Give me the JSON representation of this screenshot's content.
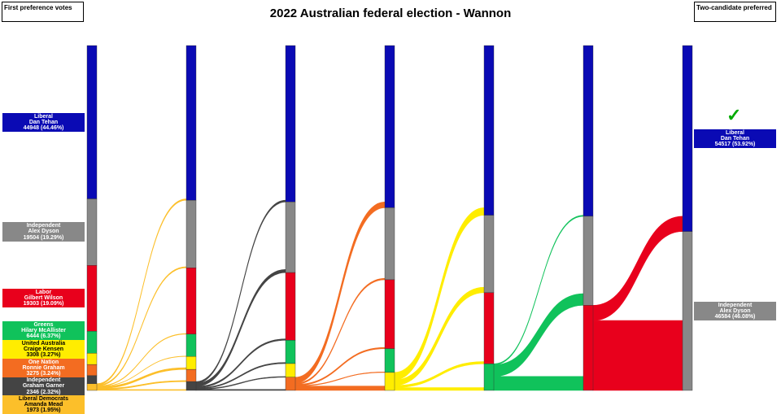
{
  "chart_data": {
    "type": "sankey",
    "title": "2022 Australian federal election - Wannon",
    "left_header": "First preference votes",
    "right_header": "Two-candidate preferred",
    "candidates": [
      {
        "id": "lib",
        "party": "Liberal",
        "name": "Dan Tehan",
        "votes": 44948,
        "pct": "44.46%",
        "color": "#0a0ab4",
        "text": "#ffffff"
      },
      {
        "id": "dys",
        "party": "Independent",
        "name": "Alex Dyson",
        "votes": 19504,
        "pct": "19.29%",
        "color": "#888888",
        "text": "#ffffff"
      },
      {
        "id": "alp",
        "party": "Labor",
        "name": "Gilbert Wilson",
        "votes": 19303,
        "pct": "19.09%",
        "color": "#e8001c",
        "text": "#ffffff"
      },
      {
        "id": "grn",
        "party": "Greens",
        "name": "Hilary McAllister",
        "votes": 6444,
        "pct": "6.37%",
        "color": "#10c25b",
        "text": "#ffffff"
      },
      {
        "id": "uap",
        "party": "United Australia",
        "name": "Craige Kensen",
        "votes": 3308,
        "pct": "3.27%",
        "color": "#ffed00",
        "text": "#000000"
      },
      {
        "id": "onp",
        "party": "One Nation",
        "name": "Ronnie Graham",
        "votes": 3275,
        "pct": "3.24%",
        "color": "#f36c21",
        "text": "#ffffff"
      },
      {
        "id": "gar",
        "party": "Independent",
        "name": "Graham Garner",
        "votes": 2346,
        "pct": "2.32%",
        "color": "#444444",
        "text": "#ffffff"
      },
      {
        "id": "ldp",
        "party": "Liberal Democrats",
        "name": "Amanda Mead",
        "votes": 1973,
        "pct": "1.95%",
        "color": "#fcbf2a",
        "text": "#000000"
      }
    ],
    "rounds": [
      {
        "excluded": "ldp",
        "transfers": {
          "lib": 400,
          "dys": 300,
          "alp": 150,
          "grn": 80,
          "uap": 500,
          "onp": 300,
          "gar": 243
        }
      },
      {
        "excluded": "gar",
        "transfers": {
          "lib": 500,
          "dys": 900,
          "alp": 400,
          "grn": 300,
          "uap": 200,
          "onp": 289
        }
      },
      {
        "excluded": "onp",
        "transfers": {
          "lib": 1700,
          "dys": 400,
          "alp": 350,
          "grn": 150,
          "uap": 1264
        }
      },
      {
        "excluded": "uap",
        "transfers": {
          "lib": 2200,
          "dys": 1600,
          "alp": 650,
          "grn": 822
        }
      },
      {
        "excluded": "grn",
        "transfers": {
          "lib": 300,
          "dys": 3400,
          "alp": 4096
        }
      },
      {
        "excluded": "alp",
        "transfers": {
          "lib": 4469,
          "dys": 20480
        }
      }
    ],
    "final": [
      {
        "id": "lib",
        "party": "Liberal",
        "name": "Dan Tehan",
        "votes": 54517,
        "pct": "53.92%",
        "winner": true
      },
      {
        "id": "dys",
        "party": "Independent",
        "name": "Alex Dyson",
        "votes": 46584,
        "pct": "46.08%",
        "winner": false
      }
    ],
    "winner_icon": "check-icon"
  }
}
